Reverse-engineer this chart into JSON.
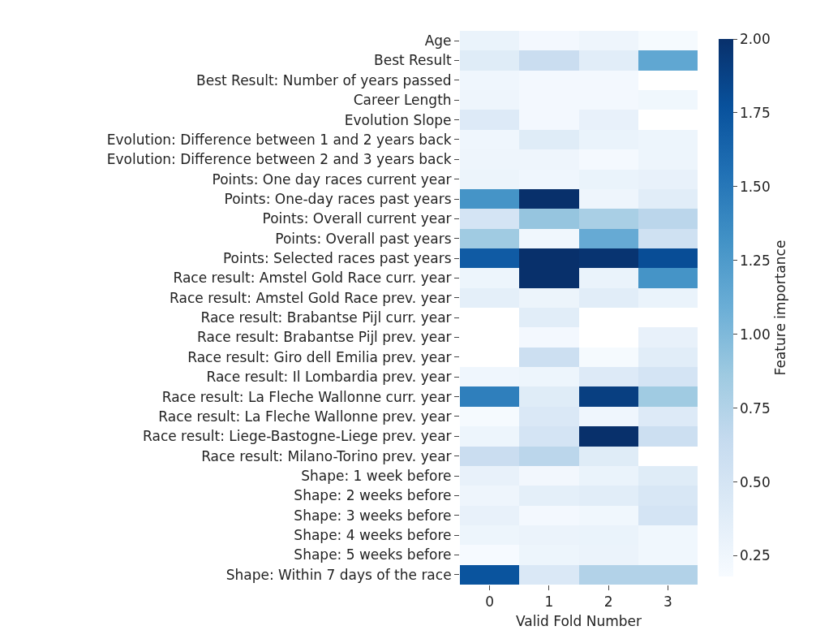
{
  "chart_data": {
    "type": "heatmap",
    "xlabel": "Valid Fold Number",
    "clabel": "Feature importance",
    "categories": [
      "0",
      "1",
      "2",
      "3"
    ],
    "y_categories": [
      "Age",
      "Best Result",
      "Best Result: Number of years passed",
      "Career Length",
      "Evolution Slope",
      "Evolution: Difference between 1 and 2 years back",
      "Evolution: Difference between 2 and 3 years back",
      "Points: One day races current year",
      "Points: One-day races past years",
      "Points: Overall current year",
      "Points: Overall past years",
      "Points: Selected races past years",
      "Race result: Amstel Gold Race curr. year",
      "Race result: Amstel Gold Race prev. year",
      "Race result: Brabantse Pijl curr. year",
      "Race result: Brabantse Pijl prev. year",
      "Race result: Giro dell Emilia prev. year",
      "Race result: Il Lombardia prev. year",
      "Race result: La Fleche Wallonne curr. year",
      "Race result: La Fleche Wallonne prev. year",
      "Race result: Liege-Bastogne-Liege prev. year",
      "Race result: Milano-Torino prev. year",
      "Shape: 1 week before",
      "Shape: 2 weeks before",
      "Shape: 3 weeks before",
      "Shape: 4 weeks before",
      "Shape: 5 weeks before",
      "Shape: Within 7 days of the race"
    ],
    "cells": [
      [
        0.3,
        0.22,
        0.26,
        0.2
      ],
      [
        0.4,
        0.6,
        0.38,
        1.15
      ],
      [
        0.25,
        0.22,
        0.22,
        null
      ],
      [
        0.26,
        0.22,
        0.22,
        0.24
      ],
      [
        0.42,
        0.22,
        0.32,
        null
      ],
      [
        0.25,
        0.4,
        0.3,
        0.27
      ],
      [
        0.26,
        0.26,
        0.21,
        0.27
      ],
      [
        0.28,
        0.25,
        0.3,
        0.32
      ],
      [
        1.3,
        2.0,
        0.26,
        0.38
      ],
      [
        0.5,
        0.9,
        0.8,
        0.7
      ],
      [
        0.85,
        0.24,
        1.12,
        0.55
      ],
      [
        1.7,
        2.0,
        1.97,
        1.8
      ],
      [
        0.27,
        2.0,
        0.3,
        1.3
      ],
      [
        0.35,
        0.28,
        0.38,
        0.3
      ],
      [
        null,
        0.38,
        null,
        null
      ],
      [
        null,
        0.22,
        null,
        0.32
      ],
      [
        null,
        0.58,
        0.2,
        0.38
      ],
      [
        0.25,
        0.27,
        0.42,
        0.5
      ],
      [
        1.45,
        0.4,
        1.9,
        0.85
      ],
      [
        0.2,
        0.45,
        0.25,
        0.42
      ],
      [
        0.27,
        0.5,
        2.0,
        0.58
      ],
      [
        0.6,
        0.7,
        0.4,
        null
      ],
      [
        0.32,
        0.23,
        0.3,
        0.4
      ],
      [
        0.26,
        0.35,
        0.38,
        0.46
      ],
      [
        0.32,
        0.22,
        0.24,
        0.5
      ],
      [
        0.27,
        0.29,
        0.3,
        0.24
      ],
      [
        0.19,
        0.27,
        0.29,
        0.24
      ],
      [
        1.75,
        0.45,
        0.75,
        0.75
      ]
    ],
    "clim": [
      0.18,
      2.0
    ],
    "cticks": [
      {
        "value": 0.25,
        "label": "0.25"
      },
      {
        "value": 0.5,
        "label": "0.50"
      },
      {
        "value": 0.75,
        "label": "0.75"
      },
      {
        "value": 1.0,
        "label": "1.00"
      },
      {
        "value": 1.25,
        "label": "1.25"
      },
      {
        "value": 1.5,
        "label": "1.50"
      },
      {
        "value": 1.75,
        "label": "1.75"
      },
      {
        "value": 2.0,
        "label": "2.00"
      }
    ]
  }
}
